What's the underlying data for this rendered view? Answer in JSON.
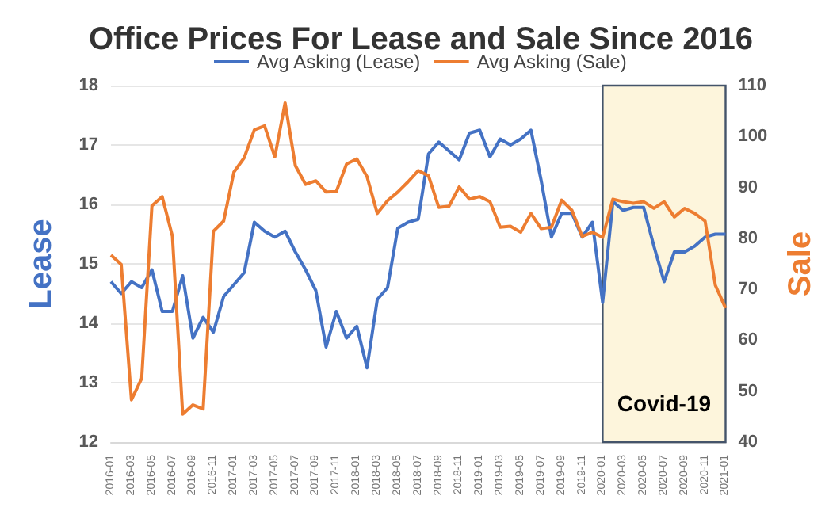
{
  "chart_data": {
    "type": "line",
    "title": "Office Prices For Lease and Sale Since 2016",
    "ylabel": "Lease",
    "y2label": "Sale",
    "categories": [
      "2016-01",
      null,
      "2016-03",
      null,
      "2016-05",
      null,
      "2016-07",
      null,
      "2016-09",
      null,
      "2016-11",
      null,
      "2017-01",
      null,
      "2017-03",
      null,
      "2017-05",
      null,
      "2017-07",
      null,
      "2017-09",
      null,
      "2017-11",
      null,
      "2018-01",
      null,
      "2018-03",
      null,
      "2018-05",
      null,
      "2018-07",
      null,
      "2018-09",
      null,
      "2018-11",
      null,
      "2019-01",
      null,
      "2019-03",
      null,
      "2019-05",
      null,
      "2019-07",
      null,
      "2019-09",
      null,
      "2019-11",
      null,
      "2020-01",
      null,
      "2020-03",
      null,
      "2020-05",
      null,
      "2020-07",
      null,
      "2020-09",
      null,
      "2020-11",
      null,
      "2021-01"
    ],
    "series": [
      {
        "name": "Avg Asking (Lease)",
        "color": "#4472c4",
        "values": [
          14.7,
          14.5,
          14.7,
          14.6,
          14.9,
          14.2,
          14.2,
          14.8,
          13.75,
          14.1,
          13.85,
          14.45,
          14.65,
          14.85,
          15.7,
          15.55,
          15.45,
          15.55,
          15.2,
          14.9,
          14.55,
          13.6,
          14.2,
          13.75,
          13.95,
          13.25,
          14.4,
          14.6,
          15.6,
          15.7,
          15.75,
          16.85,
          17.05,
          16.9,
          16.75,
          17.2,
          17.25,
          16.8,
          17.1,
          17.0,
          17.1,
          17.25,
          16.4,
          15.45,
          15.85,
          15.85,
          15.45,
          15.7,
          14.35,
          16.05,
          15.9,
          15.95,
          15.95,
          15.3,
          14.7,
          15.2,
          15.2,
          15.3,
          15.45,
          15.5,
          15.5
        ]
      },
      {
        "name": "Avg Asking (Sale)",
        "color": "#ed7d31",
        "axis": "y2",
        "values": [
          76.7,
          74.9,
          48.3,
          52.5,
          86.4,
          88.2,
          80.4,
          45.5,
          47.3,
          46.5,
          81.4,
          83.4,
          93,
          95.8,
          101.3,
          102.1,
          96,
          106.6,
          94.3,
          90.6,
          91.3,
          89.1,
          89.2,
          94.6,
          95.6,
          92.1,
          84.9,
          87.4,
          89.1,
          91.1,
          93.3,
          92.3,
          86.1,
          86.3,
          90.1,
          87.7,
          88.2,
          87.2,
          82.2,
          82.4,
          81.2,
          84.9,
          81.9,
          82.2,
          87.5,
          85.5,
          80.4,
          81.2,
          80.2,
          87.7,
          87.2,
          86.9,
          87.2,
          85.9,
          87.2,
          84.2,
          85.9,
          84.9,
          83.4,
          70.8,
          66.3
        ]
      }
    ],
    "ylim": [
      12,
      18
    ],
    "yticks": [
      12,
      13,
      14,
      15,
      16,
      17,
      18
    ],
    "y2lim": [
      40,
      110
    ],
    "y2ticks": [
      40,
      50,
      60,
      70,
      80,
      90,
      100,
      110
    ],
    "bands": [
      {
        "axis": "x",
        "from": "2020-01",
        "to": "2021-01",
        "label": "Covid-19",
        "color": "#fdf5dc"
      }
    ],
    "grid": "y",
    "legend": "top",
    "marker": "none",
    "line_style": "solid"
  }
}
